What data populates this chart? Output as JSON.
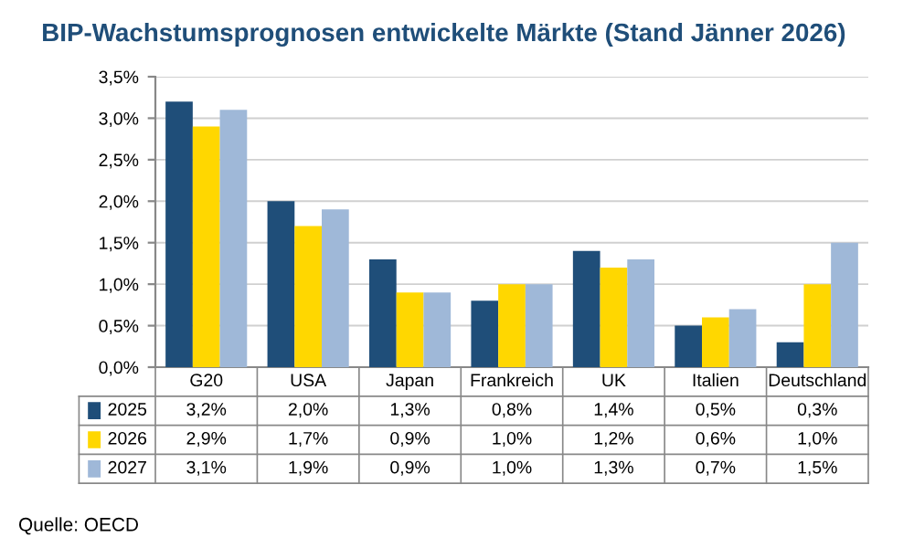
{
  "chart_data": {
    "type": "bar",
    "title": "BIP-Wachstumsprognosen entwickelte Märkte (Stand Jänner 2026)",
    "categories": [
      "G20",
      "USA",
      "Japan",
      "Frankreich",
      "UK",
      "Italien",
      "Deutschland"
    ],
    "series": [
      {
        "name": "2025",
        "color": "#1f4e79",
        "values": [
          3.2,
          2.0,
          1.3,
          0.8,
          1.4,
          0.5,
          0.3
        ],
        "value_labels": [
          "3,2%",
          "2,0%",
          "1,3%",
          "0,8%",
          "1,4%",
          "0,5%",
          "0,3%"
        ]
      },
      {
        "name": "2026",
        "color": "#ffd700",
        "values": [
          2.9,
          1.7,
          0.9,
          1.0,
          1.2,
          0.6,
          1.0
        ],
        "value_labels": [
          "2,9%",
          "1,7%",
          "0,9%",
          "1,0%",
          "1,2%",
          "0,6%",
          "1,0%"
        ]
      },
      {
        "name": "2027",
        "color": "#9fb8d8",
        "values": [
          3.1,
          1.9,
          0.9,
          1.0,
          1.3,
          0.7,
          1.5
        ],
        "value_labels": [
          "3,1%",
          "1,9%",
          "0,9%",
          "1,0%",
          "1,3%",
          "0,7%",
          "1,5%"
        ]
      }
    ],
    "ylim": [
      0,
      3.5
    ],
    "yticks": [
      {
        "value": 0,
        "label": "0,0%"
      },
      {
        "value": 0.5,
        "label": "0,5%"
      },
      {
        "value": 1,
        "label": "1,0%"
      },
      {
        "value": 1.5,
        "label": "1,5%"
      },
      {
        "value": 2,
        "label": "2,0%"
      },
      {
        "value": 2.5,
        "label": "2,5%"
      },
      {
        "value": 3,
        "label": "3,0%"
      },
      {
        "value": 3.5,
        "label": "3,5%"
      }
    ],
    "grid": "y",
    "legend": "bottom",
    "annotations": [
      "Quelle: OECD"
    ]
  }
}
